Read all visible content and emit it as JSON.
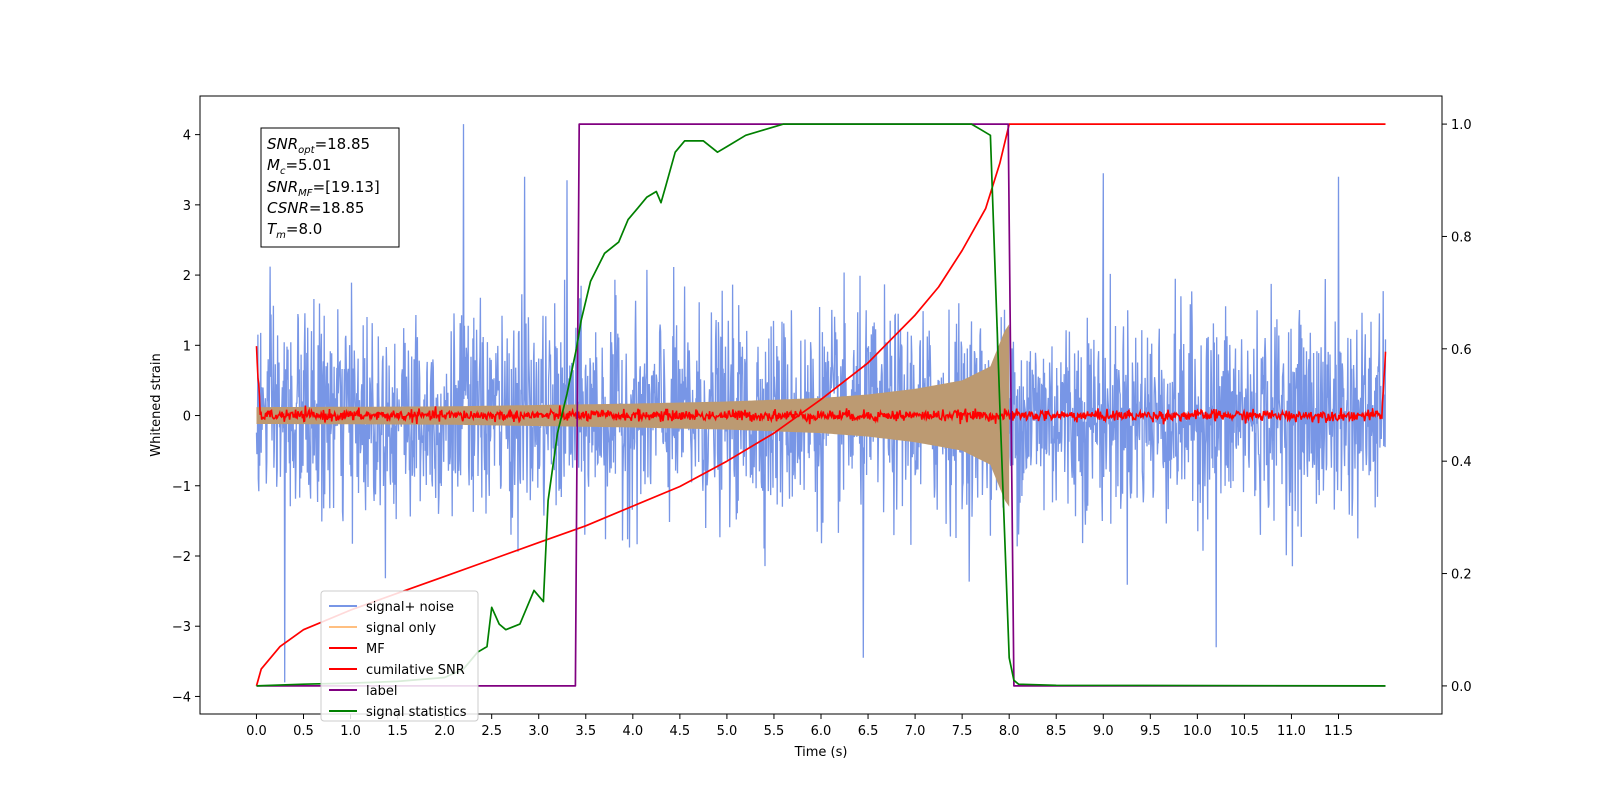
{
  "chart_data": {
    "type": "line",
    "xlabel": "Time (s)",
    "ylabel_left": "Whitened strain",
    "ylabel_right": "",
    "xlim": [
      -0.6,
      12.6
    ],
    "ylim_left": [
      -4.25,
      4.55
    ],
    "ylim_right": [
      -0.05,
      1.05
    ],
    "x_ticks": [
      "0.0",
      "0.5",
      "1.0",
      "1.5",
      "2.0",
      "2.5",
      "3.0",
      "3.5",
      "4.0",
      "4.5",
      "5.0",
      "5.5",
      "6.0",
      "6.5",
      "7.0",
      "7.5",
      "8.0",
      "8.5",
      "9.0",
      "9.5",
      "10.0",
      "10.5",
      "11.0",
      "11.5"
    ],
    "y_ticks_left": [
      "−4",
      "−3",
      "−2",
      "−1",
      "0",
      "1",
      "2",
      "3",
      "4"
    ],
    "y_ticks_right": [
      "0.0",
      "0.2",
      "0.4",
      "0.6",
      "0.8",
      "1.0"
    ],
    "colors": {
      "signal_noise": "#7896e6",
      "signal_only": "#ffbf80",
      "signal_fill": "#bc9a72",
      "mf": "#ff0000",
      "cumulative_snr": "#ff0000",
      "label": "#800080",
      "signal_statistics": "#008000"
    },
    "legend": {
      "placement": "lower-left",
      "entries": [
        {
          "key": "signal_noise",
          "label": "signal+ noise"
        },
        {
          "key": "signal_only",
          "label": "signal only"
        },
        {
          "key": "mf",
          "label": "MF"
        },
        {
          "key": "cumulative_snr",
          "label": "cumilative SNR"
        },
        {
          "key": "label",
          "label": "label"
        },
        {
          "key": "signal_statistics",
          "label": "signal statistics"
        }
      ]
    },
    "info_box": {
      "snr_opt_base": "SNR",
      "snr_opt_sub": "opt",
      "snr_opt_value": "=18.85",
      "mc_base": "M",
      "mc_sub": "c",
      "mc_value": "=5.01",
      "snr_mf_base": "SNR",
      "snr_mf_sub": "MF",
      "snr_mf_value": "=[19.13]",
      "csnr_base": "CSNR",
      "csnr_value": "=18.85",
      "tm_base": "T",
      "tm_sub": "m",
      "tm_value": "=8.0"
    },
    "series": [
      {
        "key": "signal_noise",
        "axis": "left",
        "kind": "noise",
        "x_range": [
          0.0,
          12.0
        ],
        "std": 0.95,
        "extremes": [
          [
            0.3,
            -3.8
          ],
          [
            2.2,
            4.15
          ],
          [
            2.85,
            3.4
          ],
          [
            3.3,
            3.35
          ],
          [
            6.45,
            -3.45
          ],
          [
            9.0,
            3.45
          ],
          [
            10.2,
            -3.3
          ],
          [
            11.5,
            3.4
          ]
        ]
      },
      {
        "key": "signal_only",
        "axis": "left",
        "kind": "chirp",
        "x_range": [
          0.0,
          8.0
        ],
        "amplitude": [
          [
            0.0,
            0.12
          ],
          [
            2.0,
            0.13
          ],
          [
            4.0,
            0.17
          ],
          [
            5.0,
            0.2
          ],
          [
            6.0,
            0.25
          ],
          [
            6.5,
            0.3
          ],
          [
            7.0,
            0.38
          ],
          [
            7.5,
            0.5
          ],
          [
            7.8,
            0.7
          ],
          [
            7.95,
            1.2
          ],
          [
            8.0,
            1.3
          ]
        ]
      },
      {
        "key": "mf",
        "axis": "left",
        "kind": "matched_filter",
        "x_range": [
          0.0,
          12.0
        ],
        "start": 1.0,
        "end": 0.93,
        "noise_std": 0.04
      },
      {
        "key": "cumulative_snr",
        "axis": "right",
        "x": [
          0.0,
          0.05,
          0.25,
          0.5,
          1.0,
          1.5,
          2.0,
          2.5,
          3.0,
          3.5,
          4.0,
          4.5,
          5.0,
          5.5,
          6.0,
          6.5,
          7.0,
          7.25,
          7.5,
          7.75,
          7.9,
          8.0,
          8.0001,
          12.0
        ],
        "y": [
          0.0,
          0.03,
          0.07,
          0.1,
          0.135,
          0.165,
          0.195,
          0.225,
          0.255,
          0.285,
          0.32,
          0.355,
          0.4,
          0.45,
          0.51,
          0.575,
          0.66,
          0.71,
          0.775,
          0.85,
          0.93,
          1.0,
          1.0,
          1.0
        ]
      },
      {
        "key": "label",
        "axis": "right",
        "x": [
          0.0,
          3.39,
          3.43,
          7.99,
          8.05,
          12.0
        ],
        "y": [
          0.0,
          0.0,
          1.0,
          1.0,
          0.0,
          0.0
        ]
      },
      {
        "key": "signal_statistics",
        "axis": "right",
        "x": [
          0.0,
          0.5,
          1.0,
          1.5,
          2.0,
          2.2,
          2.35,
          2.45,
          2.5,
          2.58,
          2.65,
          2.8,
          2.95,
          3.05,
          3.1,
          3.2,
          3.3,
          3.4,
          3.45,
          3.55,
          3.7,
          3.85,
          3.95,
          4.05,
          4.15,
          4.25,
          4.3,
          4.35,
          4.45,
          4.55,
          4.75,
          4.9,
          5.0,
          5.2,
          5.4,
          5.6,
          6.0,
          7.0,
          7.6,
          7.7,
          7.8,
          7.9,
          8.0,
          8.05,
          8.1,
          8.5,
          12.0
        ],
        "y": [
          0.0,
          0.003,
          0.005,
          0.008,
          0.015,
          0.03,
          0.06,
          0.07,
          0.14,
          0.11,
          0.1,
          0.11,
          0.17,
          0.15,
          0.33,
          0.45,
          0.52,
          0.6,
          0.65,
          0.72,
          0.77,
          0.79,
          0.83,
          0.85,
          0.87,
          0.88,
          0.86,
          0.89,
          0.95,
          0.97,
          0.97,
          0.95,
          0.96,
          0.98,
          0.99,
          1.0,
          1.0,
          1.0,
          1.0,
          0.99,
          0.98,
          0.5,
          0.05,
          0.01,
          0.003,
          0.001,
          0.0
        ]
      }
    ]
  }
}
